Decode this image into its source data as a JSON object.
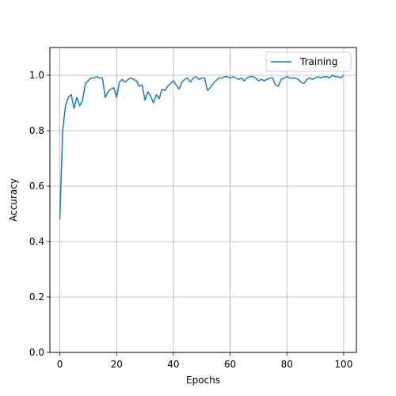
{
  "chart_data": {
    "type": "line",
    "xlabel": "Epochs",
    "ylabel": "Accuracy",
    "xlim": [
      -3.5,
      104.5
    ],
    "ylim": [
      0.0,
      1.1
    ],
    "x_ticks": [
      0,
      20,
      40,
      60,
      80,
      100
    ],
    "y_ticks": [
      0.0,
      0.2,
      0.4,
      0.6,
      0.8,
      1.0
    ],
    "x_tick_labels": [
      "0",
      "20",
      "40",
      "60",
      "80",
      "100"
    ],
    "y_tick_labels": [
      "0.0",
      "0.2",
      "0.4",
      "0.6",
      "0.8",
      "1.0"
    ],
    "grid": true,
    "legend_position": "upper right",
    "series": [
      {
        "name": "Training",
        "color": "#1f77b4",
        "x": [
          0,
          1,
          2,
          3,
          4,
          5,
          6,
          7,
          8,
          9,
          10,
          11,
          12,
          13,
          14,
          15,
          16,
          17,
          18,
          19,
          20,
          21,
          22,
          23,
          24,
          25,
          26,
          27,
          28,
          29,
          30,
          31,
          32,
          33,
          34,
          35,
          36,
          37,
          38,
          39,
          40,
          41,
          42,
          43,
          44,
          45,
          46,
          47,
          48,
          49,
          50,
          51,
          52,
          53,
          54,
          55,
          56,
          57,
          58,
          59,
          60,
          61,
          62,
          63,
          64,
          65,
          66,
          67,
          68,
          69,
          70,
          71,
          72,
          73,
          74,
          75,
          76,
          77,
          78,
          79,
          80,
          81,
          82,
          83,
          84,
          85,
          86,
          87,
          88,
          89,
          90,
          91,
          92,
          93,
          94,
          95,
          96,
          97,
          98,
          99,
          100
        ],
        "y": [
          0.48,
          0.8,
          0.89,
          0.92,
          0.93,
          0.88,
          0.92,
          0.89,
          0.91,
          0.97,
          0.98,
          0.99,
          0.99,
          0.995,
          0.99,
          0.99,
          0.92,
          0.94,
          0.95,
          0.955,
          0.92,
          0.975,
          0.985,
          0.975,
          0.985,
          0.99,
          0.985,
          0.98,
          0.96,
          0.965,
          0.91,
          0.94,
          0.925,
          0.9,
          0.93,
          0.915,
          0.95,
          0.945,
          0.96,
          0.97,
          0.98,
          0.965,
          0.95,
          0.975,
          0.985,
          0.99,
          0.975,
          0.99,
          0.995,
          0.985,
          0.99,
          0.99,
          0.945,
          0.955,
          0.97,
          0.98,
          0.99,
          0.99,
          0.995,
          0.995,
          0.99,
          0.995,
          0.99,
          0.985,
          0.99,
          0.98,
          0.99,
          0.995,
          0.995,
          0.99,
          0.98,
          0.985,
          0.98,
          0.985,
          0.99,
          0.99,
          0.965,
          0.96,
          0.985,
          0.99,
          0.995,
          0.99,
          0.99,
          0.99,
          0.985,
          0.975,
          0.97,
          0.985,
          0.99,
          0.985,
          0.99,
          0.995,
          0.99,
          0.995,
          0.995,
          0.99,
          1.0,
          0.995,
          0.995,
          0.99,
          1.0
        ]
      }
    ]
  }
}
